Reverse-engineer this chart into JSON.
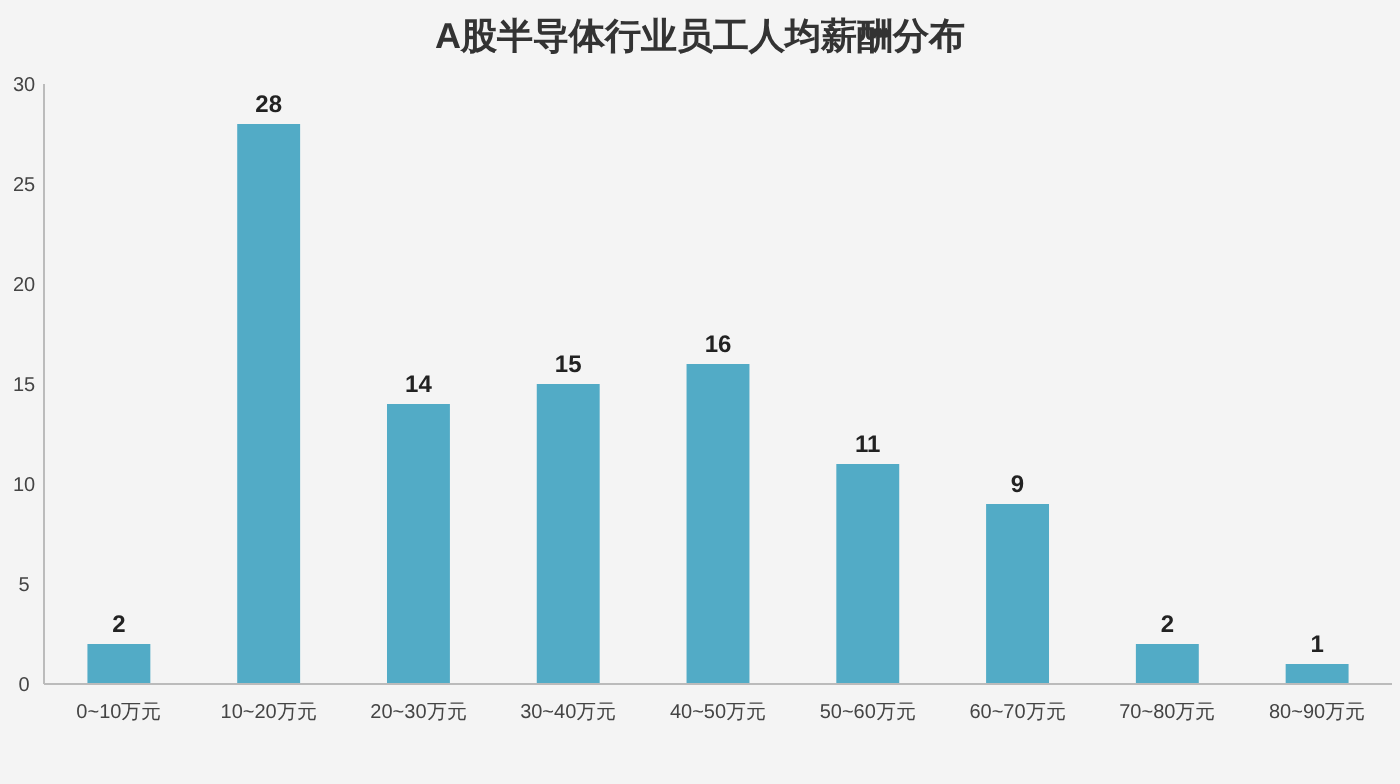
{
  "chart_data": {
    "type": "bar",
    "title": "A股半导体行业员工人均薪酬分布",
    "categories": [
      "0~10万元",
      "10~20万元",
      "20~30万元",
      "30~40万元",
      "40~50万元",
      "50~60万元",
      "60~70万元",
      "70~80万元",
      "80~90万元"
    ],
    "values": [
      2,
      28,
      14,
      15,
      16,
      11,
      9,
      2,
      1
    ],
    "color": "#52abc6",
    "ylim": [
      0,
      30
    ],
    "yticks": [
      0,
      5,
      10,
      15,
      20,
      25,
      30
    ],
    "data_labels": true
  }
}
